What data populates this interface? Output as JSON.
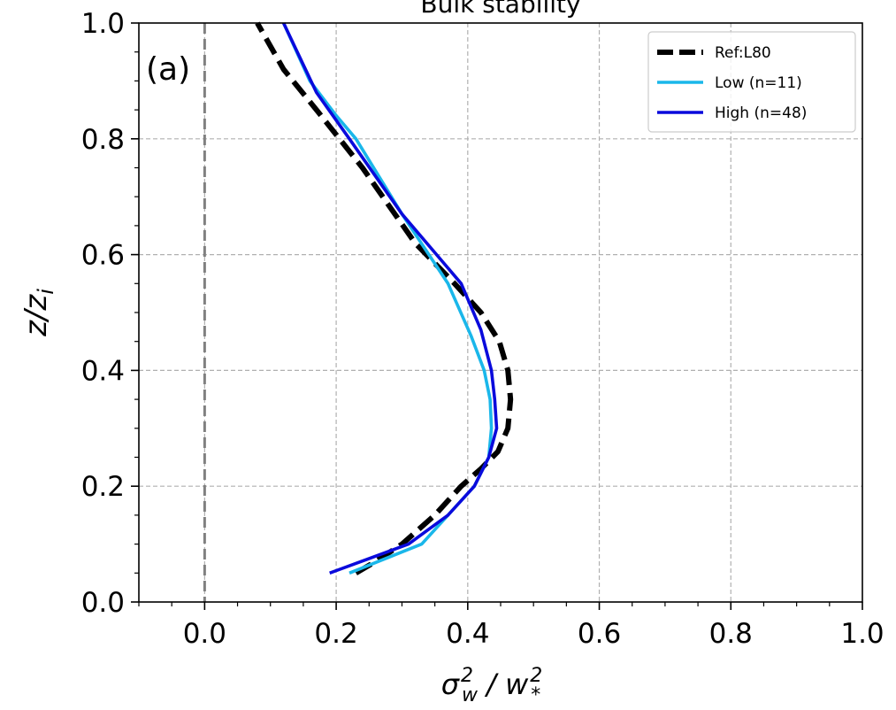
{
  "chart_data": {
    "type": "line",
    "title": "Bulk stability",
    "panel_label": "(a)",
    "xlabel": "σ_w² / w_*²",
    "ylabel": "z/z_i",
    "xlim": [
      -0.1,
      1.0
    ],
    "ylim": [
      0.0,
      1.0
    ],
    "x_ticks": [
      0.0,
      0.2,
      0.4,
      0.6,
      0.8,
      1.0
    ],
    "x_tick_labels": [
      "0.0",
      "0.2",
      "0.4",
      "0.6",
      "0.8",
      "1.0"
    ],
    "y_ticks": [
      0.0,
      0.2,
      0.4,
      0.6,
      0.8,
      1.0
    ],
    "y_tick_labels": [
      "0.0",
      "0.2",
      "0.4",
      "0.6",
      "0.8",
      "1.0"
    ],
    "grid": true,
    "legend_position": "top-right",
    "reference_line": {
      "x": 0.0,
      "style": "dashed",
      "color": "#808080"
    },
    "series": [
      {
        "name": "Ref:L80",
        "color": "#000000",
        "style": "dashed",
        "x": [
          0.23,
          0.26,
          0.3,
          0.35,
          0.39,
          0.42,
          0.446,
          0.461,
          0.465,
          0.461,
          0.448,
          0.42,
          0.38,
          0.32,
          0.24,
          0.17,
          0.12,
          0.08
        ],
        "y": [
          0.05,
          0.07,
          0.1,
          0.15,
          0.2,
          0.23,
          0.26,
          0.3,
          0.35,
          0.4,
          0.45,
          0.5,
          0.55,
          0.62,
          0.75,
          0.85,
          0.92,
          1.0
        ]
      },
      {
        "name": "Low (n=11)",
        "color": "#1ab7ea",
        "style": "solid",
        "x": [
          0.22,
          0.33,
          0.37,
          0.41,
          0.432,
          0.436,
          0.434,
          0.425,
          0.405,
          0.37,
          0.3,
          0.23,
          0.2,
          0.16,
          0.12
        ],
        "y": [
          0.05,
          0.1,
          0.15,
          0.2,
          0.25,
          0.3,
          0.35,
          0.4,
          0.46,
          0.55,
          0.67,
          0.8,
          0.84,
          0.9,
          1.0
        ]
      },
      {
        "name": "High (n=48)",
        "color": "#0a0adc",
        "style": "solid",
        "x": [
          0.19,
          0.31,
          0.37,
          0.41,
          0.432,
          0.444,
          0.441,
          0.436,
          0.42,
          0.39,
          0.3,
          0.22,
          0.17,
          0.12
        ],
        "y": [
          0.05,
          0.1,
          0.15,
          0.2,
          0.25,
          0.3,
          0.35,
          0.4,
          0.47,
          0.55,
          0.67,
          0.8,
          0.88,
          1.0
        ]
      }
    ]
  }
}
